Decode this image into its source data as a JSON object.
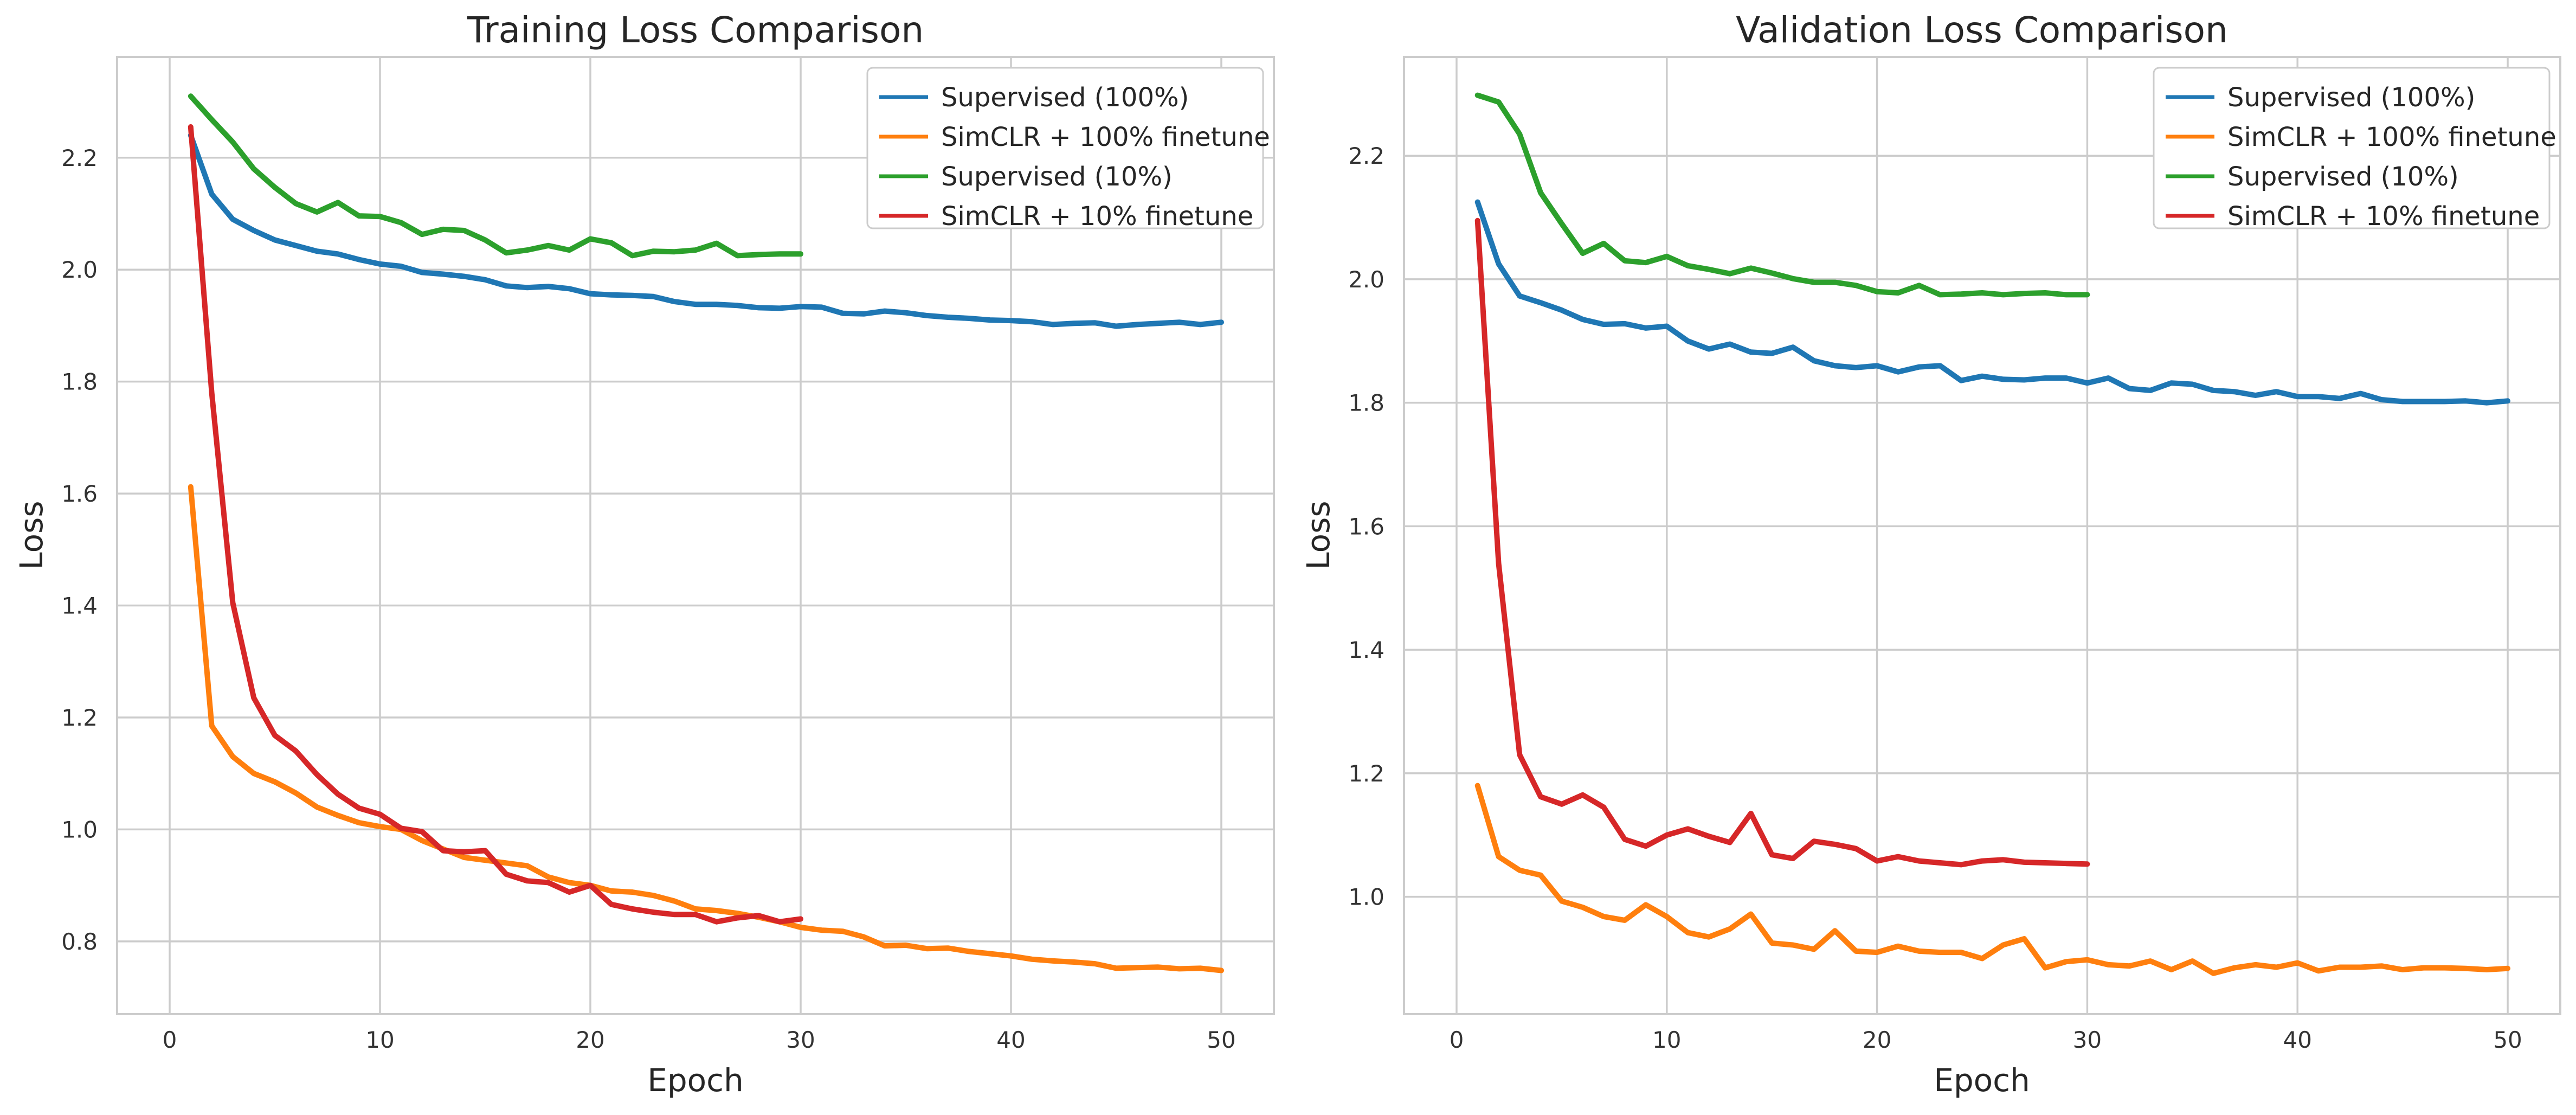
{
  "chart_data": [
    {
      "type": "line",
      "title": "Training Loss Comparison",
      "xlabel": "Epoch",
      "ylabel": "Loss",
      "xlim": [
        -2.5,
        52.5
      ],
      "ylim": [
        0.67,
        2.38
      ],
      "xticks": [
        0,
        10,
        20,
        30,
        40,
        50
      ],
      "xtick_labels": [
        "0",
        "10",
        "20",
        "30",
        "40",
        "50"
      ],
      "yticks": [
        0.8,
        1.0,
        1.2,
        1.4,
        1.6,
        1.8,
        2.0,
        2.2
      ],
      "ytick_labels": [
        "0.8",
        "1.0",
        "1.2",
        "1.4",
        "1.6",
        "1.8",
        "2.0",
        "2.2"
      ],
      "grid": true,
      "legend_position": "top-right",
      "series": [
        {
          "name": "Supervised (100%)",
          "color": "#1f77b4",
          "x": [
            1,
            2,
            3,
            4,
            5,
            6,
            7,
            8,
            9,
            10,
            11,
            12,
            13,
            14,
            15,
            16,
            17,
            18,
            19,
            20,
            21,
            22,
            23,
            24,
            25,
            26,
            27,
            28,
            29,
            30,
            31,
            32,
            33,
            34,
            35,
            36,
            37,
            38,
            39,
            40,
            41,
            42,
            43,
            44,
            45,
            46,
            47,
            48,
            49,
            50
          ],
          "y": [
            2.24,
            2.135,
            2.09,
            2.07,
            2.053,
            2.043,
            2.033,
            2.028,
            2.018,
            2.01,
            2.006,
            1.995,
            1.992,
            1.988,
            1.982,
            1.971,
            1.968,
            1.97,
            1.966,
            1.957,
            1.955,
            1.954,
            1.952,
            1.943,
            1.938,
            1.938,
            1.936,
            1.932,
            1.931,
            1.934,
            1.933,
            1.922,
            1.921,
            1.926,
            1.923,
            1.918,
            1.915,
            1.913,
            1.91,
            1.909,
            1.907,
            1.902,
            1.904,
            1.905,
            1.899,
            1.902,
            1.904,
            1.906,
            1.902,
            1.906
          ]
        },
        {
          "name": "SimCLR + 100% finetune",
          "color": "#ff7f0e",
          "x": [
            1,
            2,
            3,
            4,
            5,
            6,
            7,
            8,
            9,
            10,
            11,
            12,
            13,
            14,
            15,
            16,
            17,
            18,
            19,
            20,
            21,
            22,
            23,
            24,
            25,
            26,
            27,
            28,
            29,
            30,
            31,
            32,
            33,
            34,
            35,
            36,
            37,
            38,
            39,
            40,
            41,
            42,
            43,
            44,
            45,
            46,
            47,
            48,
            49,
            50
          ],
          "y": [
            1.612,
            1.185,
            1.13,
            1.1,
            1.085,
            1.065,
            1.04,
            1.025,
            1.012,
            1.005,
            1.0,
            0.98,
            0.965,
            0.95,
            0.945,
            0.94,
            0.935,
            0.915,
            0.905,
            0.9,
            0.89,
            0.888,
            0.882,
            0.872,
            0.858,
            0.855,
            0.85,
            0.843,
            0.835,
            0.825,
            0.82,
            0.818,
            0.808,
            0.792,
            0.793,
            0.787,
            0.788,
            0.782,
            0.778,
            0.774,
            0.768,
            0.765,
            0.763,
            0.76,
            0.752,
            0.753,
            0.754,
            0.751,
            0.752,
            0.748
          ]
        },
        {
          "name": "Supervised (10%)",
          "color": "#2ca02c",
          "x": [
            1,
            2,
            3,
            4,
            5,
            6,
            7,
            8,
            9,
            10,
            11,
            12,
            13,
            14,
            15,
            16,
            17,
            18,
            19,
            20,
            21,
            22,
            23,
            24,
            25,
            26,
            27,
            28,
            29,
            30
          ],
          "y": [
            2.31,
            2.268,
            2.228,
            2.18,
            2.147,
            2.118,
            2.103,
            2.12,
            2.096,
            2.095,
            2.084,
            2.063,
            2.072,
            2.07,
            2.053,
            2.03,
            2.035,
            2.043,
            2.035,
            2.055,
            2.048,
            2.025,
            2.033,
            2.032,
            2.035,
            2.047,
            2.025,
            2.027,
            2.028,
            2.028
          ]
        },
        {
          "name": "SimCLR + 10% finetune",
          "color": "#d62728",
          "x": [
            1,
            2,
            3,
            4,
            5,
            6,
            7,
            8,
            9,
            10,
            11,
            12,
            13,
            14,
            15,
            16,
            17,
            18,
            19,
            20,
            21,
            22,
            23,
            24,
            25,
            26,
            27,
            28,
            29,
            30
          ],
          "y": [
            2.255,
            1.78,
            1.405,
            1.235,
            1.168,
            1.14,
            1.098,
            1.063,
            1.038,
            1.027,
            1.002,
            0.996,
            0.962,
            0.96,
            0.962,
            0.92,
            0.908,
            0.905,
            0.888,
            0.9,
            0.866,
            0.858,
            0.852,
            0.848,
            0.848,
            0.835,
            0.842,
            0.846,
            0.835,
            0.84
          ]
        }
      ]
    },
    {
      "type": "line",
      "title": "Validation Loss Comparison",
      "xlabel": "Epoch",
      "ylabel": "Loss",
      "xlim": [
        -2.5,
        52.5
      ],
      "ylim": [
        0.81,
        2.36
      ],
      "xticks": [
        0,
        10,
        20,
        30,
        40,
        50
      ],
      "xtick_labels": [
        "0",
        "10",
        "20",
        "30",
        "40",
        "50"
      ],
      "yticks": [
        1.0,
        1.2,
        1.4,
        1.6,
        1.8,
        2.0,
        2.2
      ],
      "ytick_labels": [
        "1.0",
        "1.2",
        "1.4",
        "1.6",
        "1.8",
        "2.0",
        "2.2"
      ],
      "grid": true,
      "legend_position": "top-right",
      "series": [
        {
          "name": "Supervised (100%)",
          "color": "#1f77b4",
          "x": [
            1,
            2,
            3,
            4,
            5,
            6,
            7,
            8,
            9,
            10,
            11,
            12,
            13,
            14,
            15,
            16,
            17,
            18,
            19,
            20,
            21,
            22,
            23,
            24,
            25,
            26,
            27,
            28,
            29,
            30,
            31,
            32,
            33,
            34,
            35,
            36,
            37,
            38,
            39,
            40,
            41,
            42,
            43,
            44,
            45,
            46,
            47,
            48,
            49,
            50
          ],
          "y": [
            2.125,
            2.025,
            1.973,
            1.962,
            1.95,
            1.935,
            1.927,
            1.928,
            1.921,
            1.924,
            1.9,
            1.887,
            1.895,
            1.882,
            1.88,
            1.89,
            1.868,
            1.86,
            1.857,
            1.86,
            1.85,
            1.858,
            1.86,
            1.836,
            1.843,
            1.838,
            1.837,
            1.84,
            1.84,
            1.832,
            1.84,
            1.823,
            1.82,
            1.832,
            1.83,
            1.82,
            1.818,
            1.812,
            1.818,
            1.81,
            1.81,
            1.807,
            1.815,
            1.805,
            1.802,
            1.802,
            1.802,
            1.803,
            1.8,
            1.803
          ]
        },
        {
          "name": "SimCLR + 100% finetune",
          "color": "#ff7f0e",
          "x": [
            1,
            2,
            3,
            4,
            5,
            6,
            7,
            8,
            9,
            10,
            11,
            12,
            13,
            14,
            15,
            16,
            17,
            18,
            19,
            20,
            21,
            22,
            23,
            24,
            25,
            26,
            27,
            28,
            29,
            30,
            31,
            32,
            33,
            34,
            35,
            36,
            37,
            38,
            39,
            40,
            41,
            42,
            43,
            44,
            45,
            46,
            47,
            48,
            49,
            50
          ],
          "y": [
            1.18,
            1.065,
            1.043,
            1.035,
            0.993,
            0.983,
            0.968,
            0.962,
            0.987,
            0.968,
            0.942,
            0.935,
            0.948,
            0.972,
            0.925,
            0.922,
            0.915,
            0.945,
            0.912,
            0.91,
            0.92,
            0.912,
            0.91,
            0.91,
            0.9,
            0.922,
            0.932,
            0.885,
            0.895,
            0.898,
            0.89,
            0.888,
            0.896,
            0.882,
            0.896,
            0.876,
            0.885,
            0.89,
            0.886,
            0.893,
            0.88,
            0.886,
            0.886,
            0.888,
            0.882,
            0.885,
            0.885,
            0.884,
            0.882,
            0.884
          ]
        },
        {
          "name": "Supervised (10%)",
          "color": "#2ca02c",
          "x": [
            1,
            2,
            3,
            4,
            5,
            6,
            7,
            8,
            9,
            10,
            11,
            12,
            13,
            14,
            15,
            16,
            17,
            18,
            19,
            20,
            21,
            22,
            23,
            24,
            25,
            26,
            27,
            28,
            29,
            30
          ],
          "y": [
            2.298,
            2.287,
            2.235,
            2.14,
            2.09,
            2.042,
            2.058,
            2.03,
            2.027,
            2.037,
            2.022,
            2.016,
            2.009,
            2.018,
            2.01,
            2.001,
            1.995,
            1.995,
            1.99,
            1.98,
            1.978,
            1.99,
            1.975,
            1.976,
            1.978,
            1.975,
            1.977,
            1.978,
            1.975,
            1.975
          ]
        },
        {
          "name": "SimCLR + 10% finetune",
          "color": "#d62728",
          "x": [
            1,
            2,
            3,
            4,
            5,
            6,
            7,
            8,
            9,
            10,
            11,
            12,
            13,
            14,
            15,
            16,
            17,
            18,
            19,
            20,
            21,
            22,
            23,
            24,
            25,
            26,
            27,
            28,
            29,
            30
          ],
          "y": [
            2.095,
            1.54,
            1.23,
            1.162,
            1.15,
            1.165,
            1.145,
            1.093,
            1.082,
            1.1,
            1.11,
            1.098,
            1.088,
            1.135,
            1.068,
            1.062,
            1.09,
            1.085,
            1.078,
            1.058,
            1.065,
            1.058,
            1.055,
            1.052,
            1.058,
            1.06,
            1.056,
            1.055,
            1.054,
            1.053
          ]
        }
      ]
    }
  ]
}
